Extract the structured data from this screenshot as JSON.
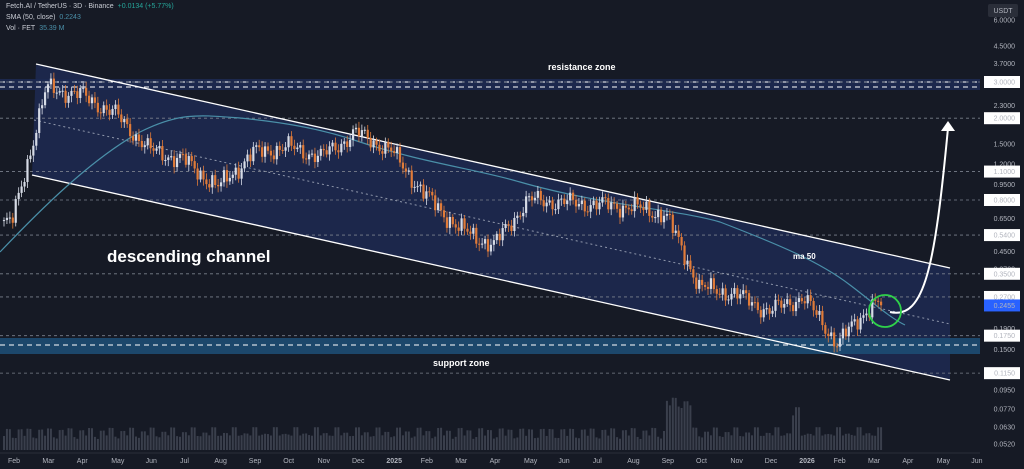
{
  "legend": {
    "title": "Fetch.AI / TetherUS · 3D · Binance",
    "change": "+0.0134 (+5.77%)",
    "sma_label": "SMA (50, close)",
    "sma_value": "0.2243",
    "vol_label": "Vol · FET",
    "vol_value": "35.39 M"
  },
  "currency": "USDT",
  "colors": {
    "background": "#161a25",
    "channel_fill": "#1d2a52",
    "up_candle": "#d6dbe6",
    "down_candle": "#e07b39",
    "ma_line": "#4a8fa8",
    "support_band": "#1d4d73",
    "highlight_circle": "#2fd14a"
  },
  "chart_data": {
    "type": "candlestick",
    "symbol": "FET/USDT",
    "interval": "3D",
    "y_scale": "log",
    "ylim": [
      0.045,
      7.5
    ],
    "x_ticks": [
      "Feb",
      "Mar",
      "Apr",
      "May",
      "Jun",
      "Jul",
      "Aug",
      "Sep",
      "Oct",
      "Nov",
      "Dec",
      "2025",
      "Feb",
      "Mar",
      "Apr",
      "May",
      "Jun",
      "Jul",
      "Aug",
      "Sep",
      "Oct",
      "Nov",
      "Dec",
      "2026",
      "Feb",
      "Mar",
      "Apr",
      "May",
      "Jun"
    ],
    "y_ticks": [
      "6.0000",
      "4.5000",
      "3.7000",
      "3.0000",
      "2.3000",
      "2.0000",
      "1.5000",
      "1.2000",
      "1.1000",
      "0.9500",
      "0.8000",
      "0.6500",
      "0.5400",
      "0.4500",
      "0.3700",
      "0.3500",
      "0.2800",
      "0.2700",
      "0.2455",
      "0.1900",
      "0.1750",
      "0.1500",
      "0.1150",
      "0.0950",
      "0.0770",
      "0.0630",
      "0.0520"
    ],
    "horizontal_levels": [
      "3.0000",
      "2.0000",
      "1.1000",
      "0.8000",
      "0.5400",
      "0.3500",
      "0.2700",
      "0.1750",
      "0.1150"
    ],
    "current_price": "0.2455",
    "price_series": [
      {
        "month": "Feb 2024",
        "close": 0.62
      },
      {
        "month": "Mar 2024",
        "close": 2.8
      },
      {
        "month": "Apr 2024",
        "close": 2.6
      },
      {
        "month": "May 2024",
        "close": 2.1
      },
      {
        "month": "Jun 2024",
        "close": 1.4
      },
      {
        "month": "Jul 2024",
        "close": 1.25
      },
      {
        "month": "Aug 2024",
        "close": 0.92
      },
      {
        "month": "Sep 2024",
        "close": 1.35
      },
      {
        "month": "Oct 2024",
        "close": 1.45
      },
      {
        "month": "Nov 2024",
        "close": 1.3
      },
      {
        "month": "Dec 2024",
        "close": 1.7
      },
      {
        "month": "Jan 2025",
        "close": 1.4
      },
      {
        "month": "Feb 2025",
        "close": 0.85
      },
      {
        "month": "Mar 2025",
        "close": 0.58
      },
      {
        "month": "Apr 2025",
        "close": 0.48
      },
      {
        "month": "May 2025",
        "close": 0.8
      },
      {
        "month": "Jun 2025",
        "close": 0.78
      },
      {
        "month": "Jul 2025",
        "close": 0.76
      },
      {
        "month": "Aug 2025",
        "close": 0.74
      },
      {
        "month": "Sep 2025",
        "close": 0.68
      },
      {
        "month": "Oct 2025",
        "close": 0.3
      },
      {
        "month": "Nov 2025",
        "close": 0.28
      },
      {
        "month": "Dec 2025",
        "close": 0.23
      },
      {
        "month": "Jan 2026",
        "close": 0.27
      },
      {
        "month": "Feb 2026",
        "close": 0.16
      },
      {
        "month": "Mar 2026",
        "close": 0.25
      }
    ],
    "annotations": [
      "resistance zone",
      "support zone",
      "descending channel",
      "ma 50"
    ]
  }
}
